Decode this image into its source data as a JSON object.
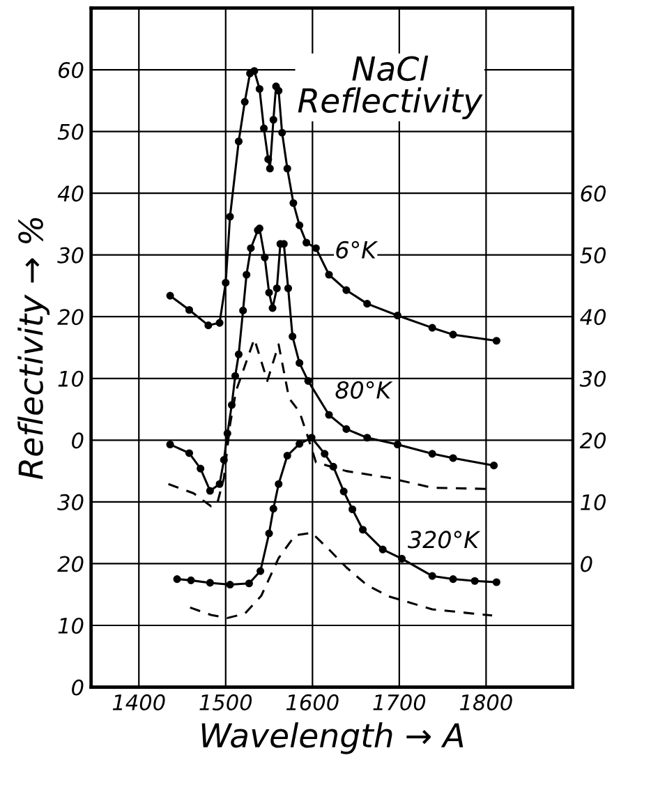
{
  "chart_data": {
    "type": "line",
    "title": "NaCl\nReflectivity",
    "xlabel": "Wavelength → A",
    "ylabel": "Reflectivity → %",
    "xlim": [
      1345,
      1900
    ],
    "xticks": [
      1400,
      1500,
      1600,
      1700,
      1800
    ],
    "ylim": [
      -40,
      70
    ],
    "yticks": [
      0,
      10,
      20,
      30,
      40,
      50,
      60
    ],
    "y2lim": [
      -20,
      90
    ],
    "y2ticks": [
      0,
      10,
      20,
      30,
      40,
      50,
      60
    ],
    "y3lim": [
      0,
      110
    ],
    "y3ticks": [
      0,
      10,
      20,
      30
    ],
    "grid": true,
    "legend": false,
    "series": [
      {
        "name": "6°K",
        "color": "#000000",
        "marker": "circle",
        "line_style": "solid",
        "x": [
          1436,
          1458,
          1480,
          1493,
          1500,
          1505,
          1515,
          1522,
          1528,
          1533,
          1539,
          1544,
          1549,
          1551,
          1555,
          1558,
          1561,
          1565,
          1571,
          1578,
          1585,
          1593,
          1604,
          1619,
          1639,
          1663,
          1698,
          1738,
          1762,
          1812
        ],
        "values": [
          23.4,
          21.1,
          18.6,
          19,
          25.5,
          36.2,
          48.4,
          54.8,
          59.4,
          59.8,
          56.9,
          50.5,
          45.5,
          44,
          51.9,
          57.3,
          56.6,
          49.8,
          44,
          38.4,
          34.8,
          32,
          31.1,
          26.8,
          24.3,
          22.1,
          20.2,
          18.2,
          17.1,
          16.1
        ]
      },
      {
        "name": "80°K",
        "color": "#000000",
        "marker": "circle",
        "line_style": "solid",
        "axis": "y2",
        "x": [
          1436,
          1458,
          1471,
          1482,
          1493,
          1498,
          1502,
          1507,
          1511,
          1515,
          1520,
          1524,
          1529,
          1537,
          1539,
          1545,
          1550,
          1554,
          1559,
          1563,
          1567,
          1572,
          1577,
          1585,
          1595,
          1619,
          1639,
          1663,
          1698,
          1738,
          1762,
          1809
        ],
        "values": [
          19.3,
          17.9,
          15.4,
          11.8,
          12.9,
          16.8,
          21.1,
          25.7,
          30.4,
          33.9,
          41,
          46.8,
          51.1,
          54,
          54.3,
          49.6,
          43.9,
          41.4,
          44.6,
          51.8,
          51.8,
          44.6,
          36.8,
          32.5,
          29.6,
          24.1,
          21.8,
          20.4,
          19.3,
          17.8,
          17.1,
          15.9
        ]
      },
      {
        "color": "#000000",
        "marker": "none",
        "line_style": "dashed",
        "axis": "y2",
        "x": [
          1434,
          1463,
          1483,
          1490,
          1498,
          1505,
          1512,
          1533,
          1548,
          1561,
          1573,
          1585,
          1595,
          1604,
          1639,
          1688,
          1738,
          1802
        ],
        "values": [
          12.9,
          11.4,
          9.3,
          9.6,
          13.9,
          22.5,
          28,
          36.4,
          29.6,
          35.5,
          26.8,
          24.6,
          20.4,
          16.4,
          15,
          13.9,
          12.3,
          12.1
        ]
      },
      {
        "name": "320°K",
        "color": "#000000",
        "marker": "circle",
        "line_style": "solid",
        "axis": "y3",
        "x": [
          1444,
          1460,
          1482,
          1505,
          1527,
          1540,
          1550,
          1555,
          1561,
          1571,
          1585,
          1599,
          1614,
          1624,
          1636,
          1646,
          1658,
          1681,
          1703,
          1738,
          1762,
          1787,
          1812
        ],
        "values": [
          17.5,
          17.3,
          16.9,
          16.6,
          16.8,
          18.8,
          24.9,
          28.9,
          32.9,
          37.5,
          39.4,
          40.4,
          37.8,
          35.7,
          31.7,
          28.8,
          25.5,
          22.3,
          20.8,
          18,
          17.5,
          17.2,
          17
        ]
      },
      {
        "color": "#000000",
        "marker": "none",
        "line_style": "dashed",
        "axis": "y3",
        "x": [
          1459,
          1483,
          1502,
          1522,
          1541,
          1561,
          1580,
          1599,
          1619,
          1639,
          1663,
          1688,
          1738,
          1807
        ],
        "values": [
          12.9,
          11.7,
          11.2,
          11.9,
          14.8,
          20.9,
          24.6,
          25,
          22.3,
          19.4,
          16.5,
          14.7,
          12.6,
          11.6
        ]
      }
    ]
  }
}
